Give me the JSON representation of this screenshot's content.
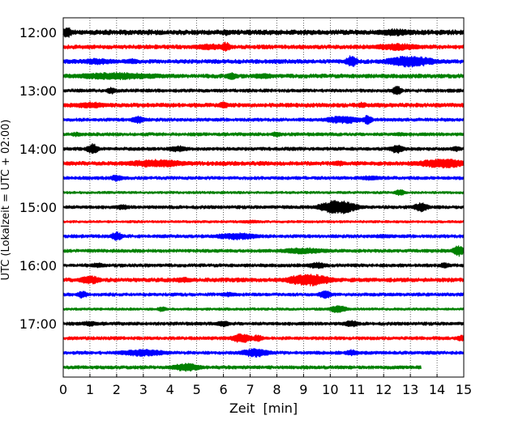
{
  "chart_data": {
    "type": "line",
    "title": "",
    "xlabel": "Zeit  [min]",
    "ylabel": "UTC (Lokalzeit = UTC + 02:00)",
    "xlim": [
      0,
      15
    ],
    "x_ticks": [
      "0",
      "1",
      "2",
      "3",
      "4",
      "5",
      "6",
      "7",
      "8",
      "9",
      "10",
      "11",
      "12",
      "13",
      "14",
      "15"
    ],
    "y_ticks": [
      {
        "label": "12:00",
        "row": 0
      },
      {
        "label": "13:00",
        "row": 4
      },
      {
        "label": "14:00",
        "row": 8
      },
      {
        "label": "15:00",
        "row": 12
      },
      {
        "label": "16:00",
        "row": 16
      },
      {
        "label": "17:00",
        "row": 20
      }
    ],
    "row_interval_minutes": 15,
    "row_colors": [
      "#000000",
      "#ff0000",
      "#0000ff",
      "#008000"
    ],
    "grid": "vertical dotted",
    "series": [
      {
        "start": "12:00",
        "color": "#000000",
        "end_min": 15,
        "amp": 6,
        "events": [
          {
            "t": 0.15,
            "amp": 14,
            "dur": 0.3
          },
          {
            "t": 6.1,
            "amp": 8,
            "dur": 0.3
          },
          {
            "t": 12.4,
            "amp": 9,
            "dur": 1.5
          }
        ]
      },
      {
        "start": "12:15",
        "color": "#ff0000",
        "end_min": 15,
        "amp": 5,
        "events": [
          {
            "t": 5.5,
            "amp": 8,
            "dur": 1.5
          },
          {
            "t": 6.1,
            "amp": 12,
            "dur": 0.3
          },
          {
            "t": 12.5,
            "amp": 9,
            "dur": 2.0
          }
        ]
      },
      {
        "start": "12:30",
        "color": "#0000ff",
        "end_min": 15,
        "amp": 5,
        "events": [
          {
            "t": 1.3,
            "amp": 8,
            "dur": 1.5
          },
          {
            "t": 2.6,
            "amp": 7,
            "dur": 0.5
          },
          {
            "t": 10.8,
            "amp": 15,
            "dur": 0.4
          },
          {
            "t": 13.0,
            "amp": 14,
            "dur": 2.0
          }
        ]
      },
      {
        "start": "12:45",
        "color": "#008000",
        "end_min": 15,
        "amp": 5,
        "events": [
          {
            "t": 2.0,
            "amp": 9,
            "dur": 4.0
          },
          {
            "t": 6.3,
            "amp": 9,
            "dur": 0.4
          },
          {
            "t": 7.5,
            "amp": 7,
            "dur": 1.0
          }
        ]
      },
      {
        "start": "13:00",
        "color": "#000000",
        "end_min": 15,
        "amp": 4,
        "events": [
          {
            "t": 1.8,
            "amp": 9,
            "dur": 0.3
          },
          {
            "t": 12.5,
            "amp": 12,
            "dur": 0.3
          }
        ]
      },
      {
        "start": "13:15",
        "color": "#ff0000",
        "end_min": 15,
        "amp": 5,
        "events": [
          {
            "t": 1.0,
            "amp": 8,
            "dur": 1.5
          },
          {
            "t": 6.0,
            "amp": 10,
            "dur": 0.3
          },
          {
            "t": 11.2,
            "amp": 8,
            "dur": 0.3
          }
        ]
      },
      {
        "start": "13:30",
        "color": "#0000ff",
        "end_min": 15,
        "amp": 4,
        "events": [
          {
            "t": 2.8,
            "amp": 10,
            "dur": 0.5
          },
          {
            "t": 10.5,
            "amp": 10,
            "dur": 1.5
          },
          {
            "t": 11.4,
            "amp": 12,
            "dur": 0.3
          }
        ]
      },
      {
        "start": "13:45",
        "color": "#008000",
        "end_min": 15,
        "amp": 4,
        "events": [
          {
            "t": 0.5,
            "amp": 6,
            "dur": 0.4
          },
          {
            "t": 8.0,
            "amp": 7,
            "dur": 0.4
          },
          {
            "t": 12.6,
            "amp": 5,
            "dur": 0.4
          }
        ]
      },
      {
        "start": "14:00",
        "color": "#000000",
        "end_min": 15,
        "amp": 4,
        "events": [
          {
            "t": 1.1,
            "amp": 13,
            "dur": 0.4
          },
          {
            "t": 4.3,
            "amp": 8,
            "dur": 0.8
          },
          {
            "t": 12.5,
            "amp": 11,
            "dur": 0.5
          },
          {
            "t": 14.7,
            "amp": 7,
            "dur": 0.4
          }
        ]
      },
      {
        "start": "14:15",
        "color": "#ff0000",
        "end_min": 15,
        "amp": 5,
        "events": [
          {
            "t": 3.5,
            "amp": 10,
            "dur": 2.5
          },
          {
            "t": 10.3,
            "amp": 7,
            "dur": 0.5
          },
          {
            "t": 14.2,
            "amp": 12,
            "dur": 2.0
          }
        ]
      },
      {
        "start": "14:30",
        "color": "#0000ff",
        "end_min": 15,
        "amp": 4,
        "events": [
          {
            "t": 2.0,
            "amp": 9,
            "dur": 0.4
          },
          {
            "t": 11.5,
            "amp": 6,
            "dur": 1.0
          }
        ]
      },
      {
        "start": "14:45",
        "color": "#008000",
        "end_min": 15,
        "amp": 3,
        "events": [
          {
            "t": 12.6,
            "amp": 8,
            "dur": 0.4
          }
        ]
      },
      {
        "start": "15:00",
        "color": "#000000",
        "end_min": 15,
        "amp": 4,
        "events": [
          {
            "t": 2.2,
            "amp": 7,
            "dur": 0.5
          },
          {
            "t": 10.3,
            "amp": 18,
            "dur": 1.4
          },
          {
            "t": 13.4,
            "amp": 12,
            "dur": 0.5
          }
        ]
      },
      {
        "start": "15:15",
        "color": "#ff0000",
        "end_min": 15,
        "amp": 3,
        "events": [
          {
            "t": 7.0,
            "amp": 4,
            "dur": 1.0
          }
        ]
      },
      {
        "start": "15:30",
        "color": "#0000ff",
        "end_min": 15,
        "amp": 4,
        "events": [
          {
            "t": 2.0,
            "amp": 11,
            "dur": 0.4
          },
          {
            "t": 6.5,
            "amp": 9,
            "dur": 1.8
          },
          {
            "t": 12.0,
            "amp": 5,
            "dur": 1.0
          }
        ]
      },
      {
        "start": "15:45",
        "color": "#008000",
        "end_min": 15,
        "amp": 4,
        "events": [
          {
            "t": 9.0,
            "amp": 8,
            "dur": 2.0
          },
          {
            "t": 14.8,
            "amp": 14,
            "dur": 0.4
          }
        ]
      },
      {
        "start": "16:00",
        "color": "#000000",
        "end_min": 15,
        "amp": 4,
        "events": [
          {
            "t": 1.3,
            "amp": 7,
            "dur": 0.5
          },
          {
            "t": 9.5,
            "amp": 8,
            "dur": 0.8
          },
          {
            "t": 14.3,
            "amp": 7,
            "dur": 0.4
          }
        ]
      },
      {
        "start": "16:15",
        "color": "#ff0000",
        "end_min": 15,
        "amp": 5,
        "events": [
          {
            "t": 1.0,
            "amp": 11,
            "dur": 0.8
          },
          {
            "t": 4.5,
            "amp": 7,
            "dur": 0.8
          },
          {
            "t": 9.2,
            "amp": 15,
            "dur": 1.8
          }
        ]
      },
      {
        "start": "16:30",
        "color": "#0000ff",
        "end_min": 15,
        "amp": 4,
        "events": [
          {
            "t": 0.7,
            "amp": 9,
            "dur": 0.4
          },
          {
            "t": 6.2,
            "amp": 6,
            "dur": 0.6
          },
          {
            "t": 9.8,
            "amp": 10,
            "dur": 0.5
          }
        ]
      },
      {
        "start": "16:45",
        "color": "#008000",
        "end_min": 15,
        "amp": 3,
        "events": [
          {
            "t": 3.7,
            "amp": 7,
            "dur": 0.3
          },
          {
            "t": 10.3,
            "amp": 10,
            "dur": 0.6
          }
        ]
      },
      {
        "start": "17:00",
        "color": "#000000",
        "end_min": 15,
        "amp": 4,
        "events": [
          {
            "t": 1.0,
            "amp": 7,
            "dur": 0.6
          },
          {
            "t": 6.0,
            "amp": 8,
            "dur": 0.5
          },
          {
            "t": 10.8,
            "amp": 8,
            "dur": 0.6
          }
        ]
      },
      {
        "start": "17:15",
        "color": "#ff0000",
        "end_min": 15,
        "amp": 4,
        "events": [
          {
            "t": 6.7,
            "amp": 12,
            "dur": 0.8
          },
          {
            "t": 7.3,
            "amp": 10,
            "dur": 0.3
          },
          {
            "t": 14.9,
            "amp": 8,
            "dur": 0.3
          }
        ]
      },
      {
        "start": "17:30",
        "color": "#0000ff",
        "end_min": 15,
        "amp": 4,
        "events": [
          {
            "t": 3.0,
            "amp": 9,
            "dur": 2.0
          },
          {
            "t": 7.2,
            "amp": 11,
            "dur": 1.2
          },
          {
            "t": 10.8,
            "amp": 8,
            "dur": 0.5
          }
        ]
      },
      {
        "start": "17:45",
        "color": "#008000",
        "end_min": 13.4,
        "amp": 4,
        "events": [
          {
            "t": 4.6,
            "amp": 10,
            "dur": 1.2
          }
        ]
      }
    ]
  }
}
